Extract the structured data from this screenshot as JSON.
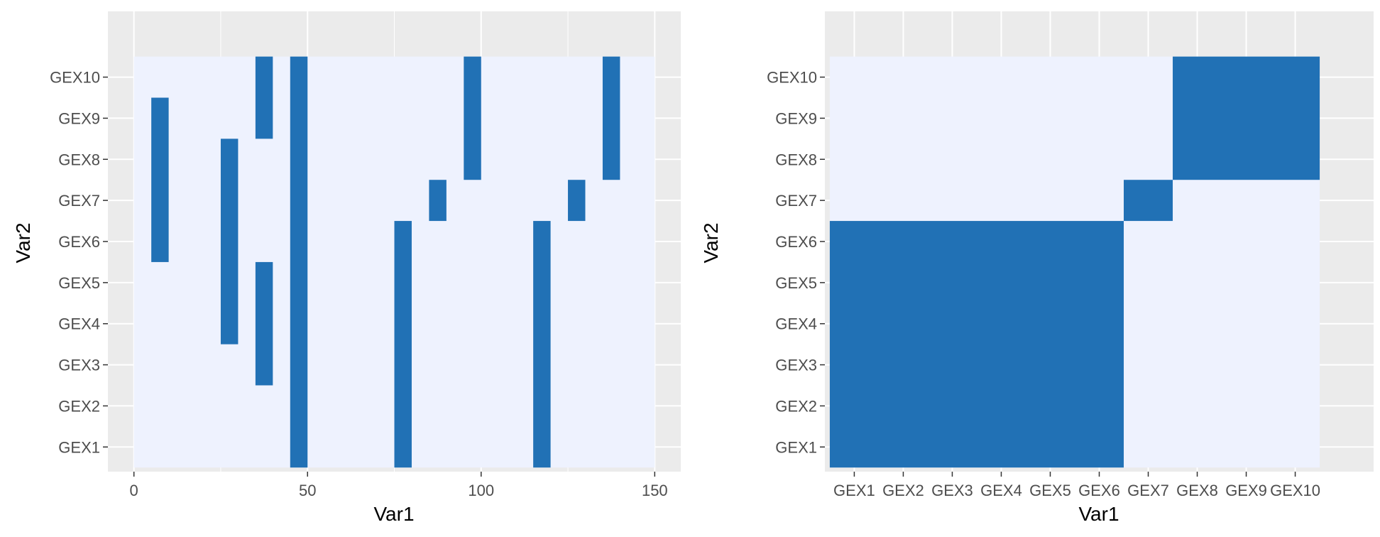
{
  "chart_data": [
    {
      "type": "heatmap",
      "xlabel": "Var1",
      "ylabel": "Var2",
      "xlim": [
        -7.5,
        157.5
      ],
      "x_ticks": [
        0,
        50,
        100,
        150
      ],
      "x_tick_labels": [
        "0",
        "50",
        "100",
        "150"
      ],
      "y_categories": [
        "GEX1",
        "GEX2",
        "GEX3",
        "GEX4",
        "GEX5",
        "GEX6",
        "GEX7",
        "GEX8",
        "GEX9",
        "GEX10"
      ],
      "tile_width": 5,
      "background_fill": "#eef2fe",
      "fill": "#2171b5",
      "grid": true,
      "filled_tiles": [
        {
          "x": 7.5,
          "from": "GEX6",
          "to": "GEX9"
        },
        {
          "x": 27.5,
          "from": "GEX4",
          "to": "GEX8"
        },
        {
          "x": 37.5,
          "from": "GEX3",
          "to": "GEX5"
        },
        {
          "x": 37.5,
          "from": "GEX9",
          "to": "GEX10"
        },
        {
          "x": 47.5,
          "from": "GEX1",
          "to": "GEX10"
        },
        {
          "x": 77.5,
          "from": "GEX1",
          "to": "GEX6"
        },
        {
          "x": 87.5,
          "from": "GEX7",
          "to": "GEX7"
        },
        {
          "x": 97.5,
          "from": "GEX8",
          "to": "GEX10"
        },
        {
          "x": 117.5,
          "from": "GEX1",
          "to": "GEX6"
        },
        {
          "x": 127.5,
          "from": "GEX7",
          "to": "GEX7"
        },
        {
          "x": 137.5,
          "from": "GEX8",
          "to": "GEX10"
        }
      ]
    },
    {
      "type": "heatmap",
      "xlabel": "Var1",
      "ylabel": "Var2",
      "x_categories": [
        "GEX1",
        "GEX2",
        "GEX3",
        "GEX4",
        "GEX5",
        "GEX6",
        "GEX7",
        "GEX8",
        "GEX9",
        "GEX10"
      ],
      "y_categories": [
        "GEX1",
        "GEX2",
        "GEX3",
        "GEX4",
        "GEX5",
        "GEX6",
        "GEX7",
        "GEX8",
        "GEX9",
        "GEX10"
      ],
      "background_fill": "#eef2fe",
      "fill": "#2171b5",
      "grid": true,
      "filled_blocks": [
        {
          "x_from": "GEX1",
          "x_to": "GEX6",
          "y_from": "GEX1",
          "y_to": "GEX6"
        },
        {
          "x_from": "GEX7",
          "x_to": "GEX7",
          "y_from": "GEX7",
          "y_to": "GEX7"
        },
        {
          "x_from": "GEX8",
          "x_to": "GEX10",
          "y_from": "GEX8",
          "y_to": "GEX10"
        }
      ]
    }
  ]
}
